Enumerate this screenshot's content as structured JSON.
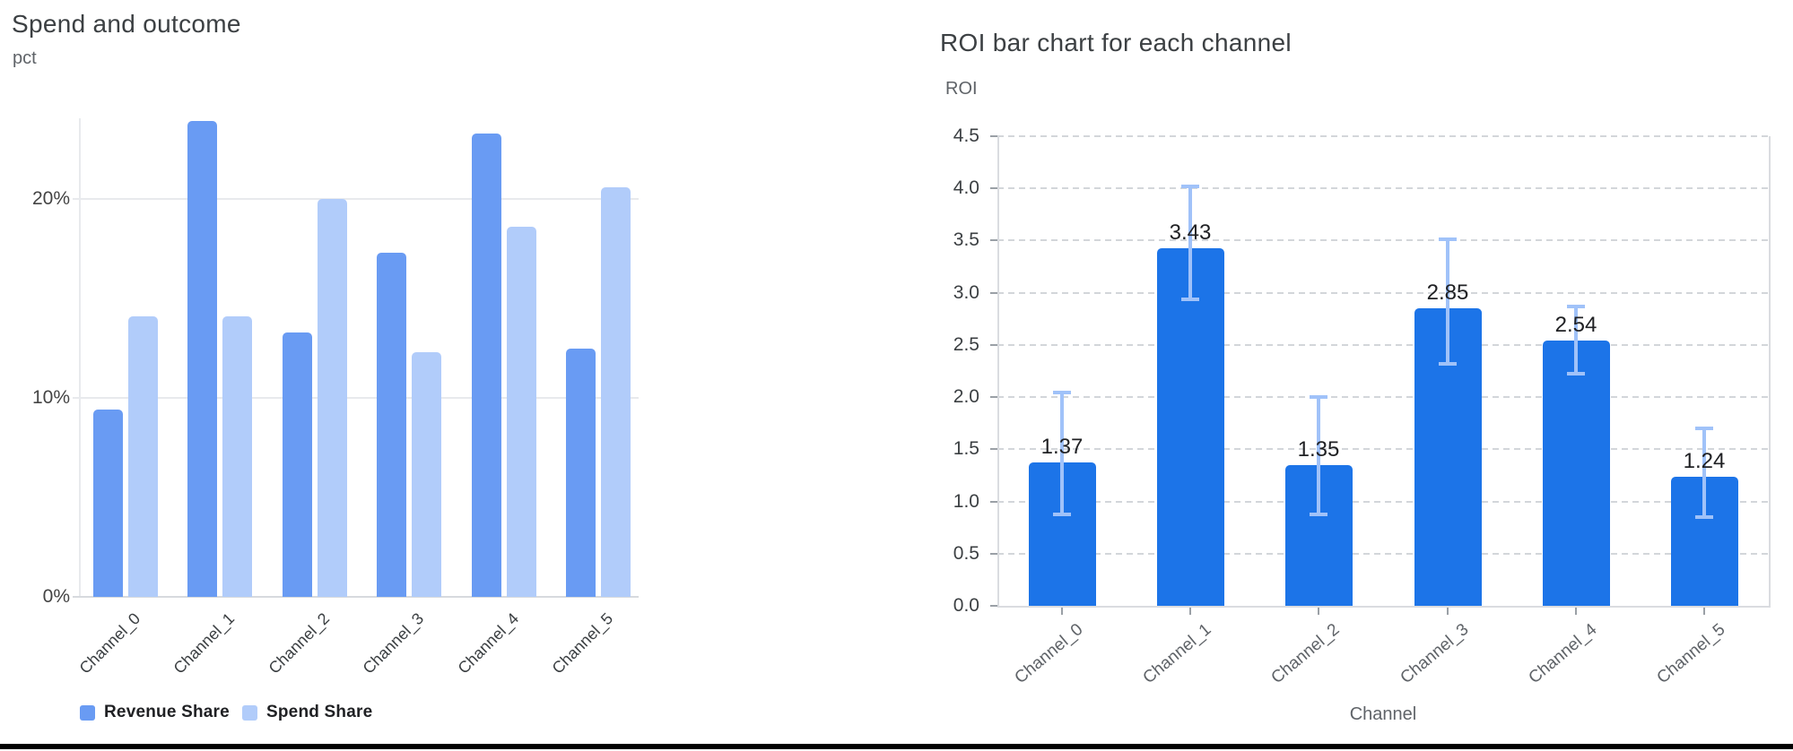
{
  "chart_data": [
    {
      "type": "bar",
      "title": "Spend and outcome",
      "y_axis_label": "pct",
      "categories": [
        "Channel_0",
        "Channel_1",
        "Channel_2",
        "Channel_3",
        "Channel_4",
        "Channel_5"
      ],
      "series": [
        {
          "name": "Revenue Share",
          "color": "#699BF3",
          "values": [
            9.4,
            23.9,
            13.3,
            17.3,
            23.3,
            12.5
          ]
        },
        {
          "name": "Spend Share",
          "color": "#B1CCFA",
          "values": [
            14.1,
            14.1,
            20.0,
            12.3,
            18.6,
            20.6
          ]
        }
      ],
      "value_unit": "%",
      "y_tick_values": [
        0,
        10,
        20
      ],
      "y_tick_labels": [
        "0%",
        "10%",
        "20%"
      ],
      "ylim": [
        0,
        24
      ],
      "grid": "solid",
      "legend_position": "bottom"
    },
    {
      "type": "bar",
      "title": "ROI bar chart for each channel",
      "y_axis_label": "ROI",
      "x_axis_label": "Channel",
      "categories": [
        "Channel_0",
        "Channel_1",
        "Channel_2",
        "Channel_3",
        "Channel_4",
        "Channel_5"
      ],
      "values": [
        1.37,
        3.43,
        1.35,
        2.85,
        2.54,
        1.24
      ],
      "value_labels": [
        "1.37",
        "3.43",
        "1.35",
        "2.85",
        "2.54",
        "1.24"
      ],
      "error_low": [
        0.88,
        2.94,
        0.88,
        2.32,
        2.22,
        0.85
      ],
      "error_high": [
        2.04,
        4.02,
        2.0,
        3.51,
        2.87,
        1.7
      ],
      "bar_color": "#1C74E8",
      "error_bar_color": "#A0C2F9",
      "y_tick_values": [
        0.0,
        0.5,
        1.0,
        1.5,
        2.0,
        2.5,
        3.0,
        3.5,
        4.0,
        4.5
      ],
      "y_tick_labels": [
        "0.0",
        "0.5",
        "1.0",
        "1.5",
        "2.0",
        "2.5",
        "3.0",
        "3.5",
        "4.0",
        "4.5"
      ],
      "ylim": [
        0,
        4.5
      ],
      "grid": "dashed",
      "legend_position": "none"
    }
  ],
  "colors": {
    "title": "#3c4043",
    "sub_label": "#5f6368",
    "solid_grid": "#e8eaed",
    "baseline": "#d7dade",
    "dashed_grid": "#d3d6da",
    "plot_border": "#dadce0",
    "tick_mark": "#9aa0a6",
    "value_label": "#202124",
    "bottom_rule": "#000000"
  }
}
